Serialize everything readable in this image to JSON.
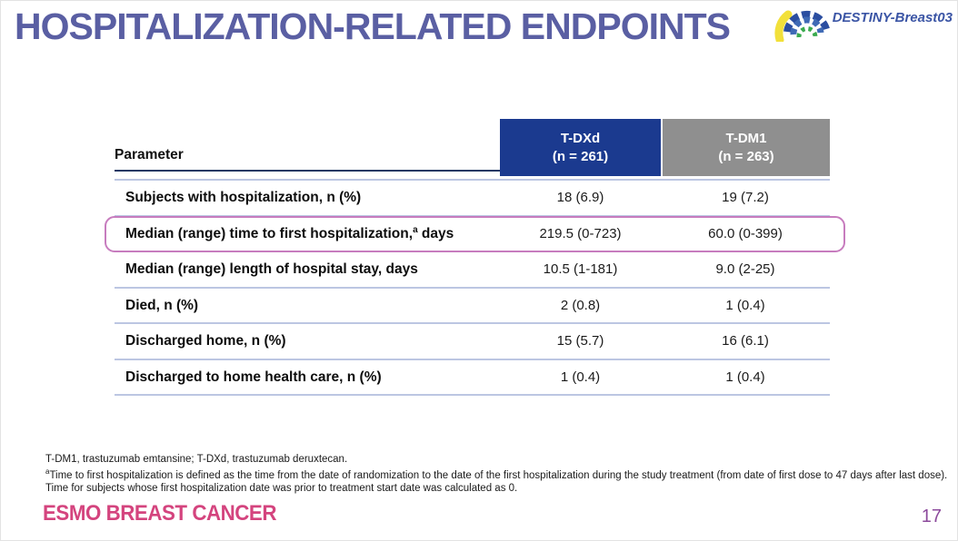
{
  "slide": {
    "title": "HOSPITALIZATION-RELATED ENDPOINTS",
    "page_number": "17"
  },
  "brand": {
    "study_name": "DESTINY-Breast03"
  },
  "table": {
    "parameter_header": "Parameter",
    "columns": [
      {
        "label": "T-DXd",
        "sub": "(n = 261)"
      },
      {
        "label": "T-DM1",
        "sub": "(n = 263)"
      }
    ],
    "rows": [
      {
        "param": "Subjects with hospitalization, n (%)",
        "sup": "",
        "tail": "",
        "tdxd": "18 (6.9)",
        "tdm1": "19 (7.2)",
        "highlight": false
      },
      {
        "param": "Median (range) time to first hospitalization,",
        "sup": "a",
        "tail": " days",
        "tdxd": "219.5 (0-723)",
        "tdm1": "60.0 (0-399)",
        "highlight": true
      },
      {
        "param": "Median (range) length of hospital stay, days",
        "sup": "",
        "tail": "",
        "tdxd": "10.5 (1-181)",
        "tdm1": "9.0 (2-25)",
        "highlight": false
      },
      {
        "param": "Died, n (%)",
        "sup": "",
        "tail": "",
        "tdxd": "2 (0.8)",
        "tdm1": "1 (0.4)",
        "highlight": false
      },
      {
        "param": "Discharged home, n (%)",
        "sup": "",
        "tail": "",
        "tdxd": "15 (5.7)",
        "tdm1": "16 (6.1)",
        "highlight": false
      },
      {
        "param": "Discharged to home health care, n (%)",
        "sup": "",
        "tail": "",
        "tdxd": "1 (0.4)",
        "tdm1": "1 (0.4)",
        "highlight": false
      }
    ]
  },
  "footnotes": {
    "line1": "T-DM1, trastuzumab emtansine; T-DXd, trastuzumab deruxtecan.",
    "note_sup": "a",
    "note_text": "Time to first hospitalization is defined as the time from the date of randomization to the date of the first hospitalization during the study treatment (from date of first dose to 47 days after last dose). Time for subjects whose first hospitalization date was prior to treatment start date was calculated as 0."
  },
  "footer": {
    "conference": "ESMO BREAST CANCER"
  },
  "colors": {
    "title": "#5a5fa3",
    "tdxd_header_bg": "#1b3a8f",
    "tdm1_header_bg": "#8f8f8f",
    "header_underline": "#1f3864",
    "row_divider": "#bcc6e2",
    "highlight_border": "#c77cbe",
    "esmo_pink": "#d4447e",
    "page_purple": "#8c4a9c",
    "brand_blue": "#3b55a5"
  }
}
